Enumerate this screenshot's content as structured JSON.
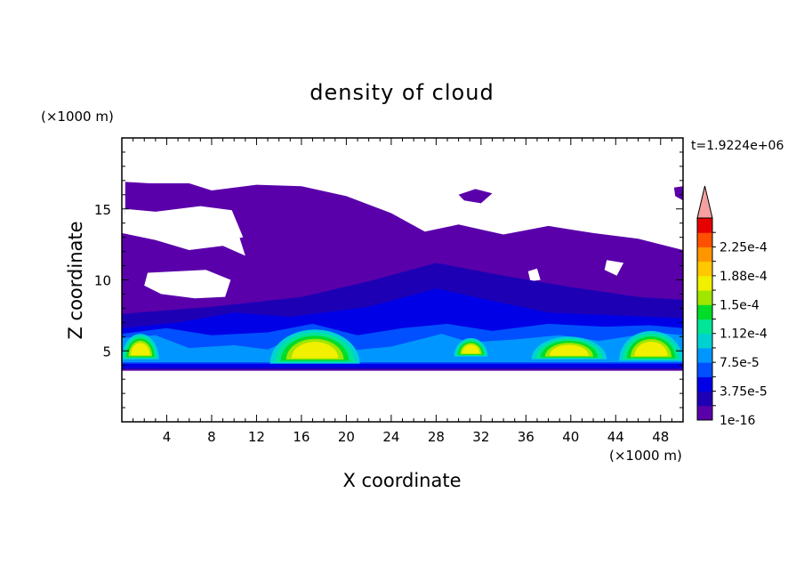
{
  "chart_data": {
    "type": "heatmap",
    "title": "density of cloud",
    "xlabel": "X coordinate",
    "ylabel": "Z coordinate",
    "x_unit": "(×1000 m)",
    "y_unit": "(×1000 m)",
    "time_label": "t=1.9224e+06",
    "xlim": [
      0,
      50
    ],
    "ylim": [
      0,
      20
    ],
    "x_ticks": [
      4,
      8,
      12,
      16,
      20,
      24,
      28,
      32,
      36,
      40,
      44,
      48
    ],
    "y_ticks": [
      5,
      10,
      15
    ],
    "colorbar": {
      "labels": [
        "1e-16",
        "3.75e-5",
        "7.5e-5",
        "1.12e-4",
        "1.5e-4",
        "1.88e-4",
        "2.25e-4"
      ],
      "levels": [
        0,
        1.88e-05,
        3.75e-05,
        5.63e-05,
        7.5e-05,
        9.38e-05,
        0.0001125,
        0.0001313,
        0.00015,
        0.0001688,
        0.0001875,
        0.0002063,
        0.000225,
        0.0002438
      ],
      "colors": [
        "#5a00aa",
        "#1e00b4",
        "#0000e6",
        "#0050ff",
        "#0096ff",
        "#00d2d2",
        "#00e696",
        "#00dc28",
        "#a0e600",
        "#f0f000",
        "#ffc800",
        "#ff9600",
        "#ff5000",
        "#e60000"
      ],
      "extend_color": "#f5a0a0"
    },
    "layers": {
      "min_density_patches": [
        [
          [
            0.3,
            16.9
          ],
          [
            2.5,
            16.8
          ],
          [
            6,
            16.8
          ],
          [
            8,
            16.3
          ],
          [
            12,
            16.7
          ],
          [
            16,
            16.6
          ],
          [
            20,
            15.9
          ],
          [
            24,
            14.7
          ],
          [
            27,
            13.4
          ],
          [
            30,
            13.9
          ],
          [
            34,
            13.2
          ],
          [
            38,
            13.8
          ],
          [
            42,
            13.3
          ],
          [
            46,
            12.9
          ],
          [
            50,
            12.1
          ],
          [
            50,
            3.6
          ],
          [
            0,
            3.6
          ],
          [
            0,
            12.1
          ],
          [
            3,
            11.8
          ],
          [
            2,
            10.3
          ],
          [
            0,
            10.6
          ],
          [
            0,
            13.3
          ],
          [
            3,
            12.8
          ],
          [
            6,
            12.1
          ],
          [
            9,
            12.4
          ],
          [
            11,
            11.7
          ],
          [
            10,
            14.2
          ],
          [
            7,
            14.8
          ],
          [
            3,
            14.3
          ],
          [
            0.3,
            14.7
          ]
        ],
        [
          [
            30,
            16.0
          ],
          [
            31.5,
            16.4
          ],
          [
            33,
            16.1
          ],
          [
            32,
            15.4
          ],
          [
            30.5,
            15.6
          ]
        ],
        [
          [
            49.2,
            16.5
          ],
          [
            50,
            16.6
          ],
          [
            50,
            15.6
          ],
          [
            49.3,
            15.9
          ]
        ]
      ],
      "clear_gaps": [
        [
          [
            0.3,
            15.0
          ],
          [
            3,
            14.8
          ],
          [
            7,
            15.2
          ],
          [
            9.8,
            14.9
          ],
          [
            10.8,
            13.0
          ],
          [
            9,
            12.7
          ],
          [
            6,
            12.6
          ],
          [
            3,
            13.2
          ],
          [
            0.3,
            13.6
          ]
        ],
        [
          [
            2.3,
            10.5
          ],
          [
            7.5,
            10.7
          ],
          [
            9.7,
            10.0
          ],
          [
            9.2,
            8.8
          ],
          [
            6.5,
            8.7
          ],
          [
            3.5,
            9.0
          ],
          [
            2.0,
            9.6
          ]
        ],
        [
          [
            24.8,
            8.0
          ],
          [
            25.8,
            8.2
          ],
          [
            26.1,
            7.3
          ],
          [
            25.3,
            7.0
          ]
        ],
        [
          [
            43.2,
            11.4
          ],
          [
            44.7,
            11.2
          ],
          [
            44.1,
            10.3
          ],
          [
            43.0,
            10.7
          ]
        ],
        [
          [
            36.2,
            10.6
          ],
          [
            37.0,
            10.8
          ],
          [
            37.3,
            10.0
          ],
          [
            36.4,
            9.9
          ]
        ]
      ],
      "bands": [
        {
          "level": 1,
          "points": [
            [
              0,
              7.6
            ],
            [
              8,
              8.1
            ],
            [
              16,
              8.8
            ],
            [
              22,
              9.9
            ],
            [
              28,
              11.2
            ],
            [
              34,
              10.3
            ],
            [
              40,
              9.5
            ],
            [
              46,
              8.8
            ],
            [
              50,
              8.6
            ],
            [
              50,
              3.7
            ],
            [
              0,
              3.7
            ]
          ]
        },
        {
          "level": 2,
          "points": [
            [
              0,
              6.6
            ],
            [
              5,
              7.0
            ],
            [
              10,
              7.7
            ],
            [
              15,
              7.4
            ],
            [
              22,
              8.1
            ],
            [
              28,
              9.4
            ],
            [
              32,
              8.7
            ],
            [
              38,
              7.7
            ],
            [
              44,
              7.5
            ],
            [
              50,
              7.3
            ],
            [
              50,
              3.8
            ],
            [
              0,
              3.8
            ]
          ]
        },
        {
          "level": 3,
          "points": [
            [
              0,
              6.2
            ],
            [
              4,
              6.6
            ],
            [
              8,
              6.1
            ],
            [
              13,
              6.3
            ],
            [
              17,
              6.9
            ],
            [
              21,
              6.1
            ],
            [
              25,
              6.6
            ],
            [
              29,
              6.9
            ],
            [
              33,
              6.4
            ],
            [
              38,
              6.9
            ],
            [
              43,
              6.7
            ],
            [
              47,
              6.8
            ],
            [
              50,
              6.6
            ],
            [
              50,
              4.1
            ],
            [
              0,
              4.1
            ]
          ]
        },
        {
          "level": 4,
          "points": [
            [
              0,
              5.9
            ],
            [
              3,
              6.1
            ],
            [
              6,
              5.2
            ],
            [
              10,
              5.4
            ],
            [
              13,
              5.1
            ],
            [
              16.5,
              6.3
            ],
            [
              20,
              5.0
            ],
            [
              24,
              5.3
            ],
            [
              28.5,
              6.2
            ],
            [
              31,
              5.6
            ],
            [
              35,
              5.8
            ],
            [
              39,
              6.1
            ],
            [
              42.5,
              5.7
            ],
            [
              47.5,
              6.3
            ],
            [
              50,
              6.1
            ],
            [
              50,
              4.2
            ],
            [
              0,
              4.2
            ]
          ]
        }
      ],
      "domes": [
        {
          "x0": 0,
          "x1": 3.3,
          "top": 6.2,
          "base": 4.4
        },
        {
          "x0": 13.2,
          "x1": 21.2,
          "top": 6.5,
          "base": 4.1
        },
        {
          "x0": 29.6,
          "x1": 32.6,
          "top": 5.9,
          "base": 4.6
        },
        {
          "x0": 36.5,
          "x1": 43.2,
          "top": 6.0,
          "base": 4.4
        },
        {
          "x0": 44.3,
          "x1": 50,
          "top": 6.4,
          "base": 4.3
        }
      ]
    }
  }
}
